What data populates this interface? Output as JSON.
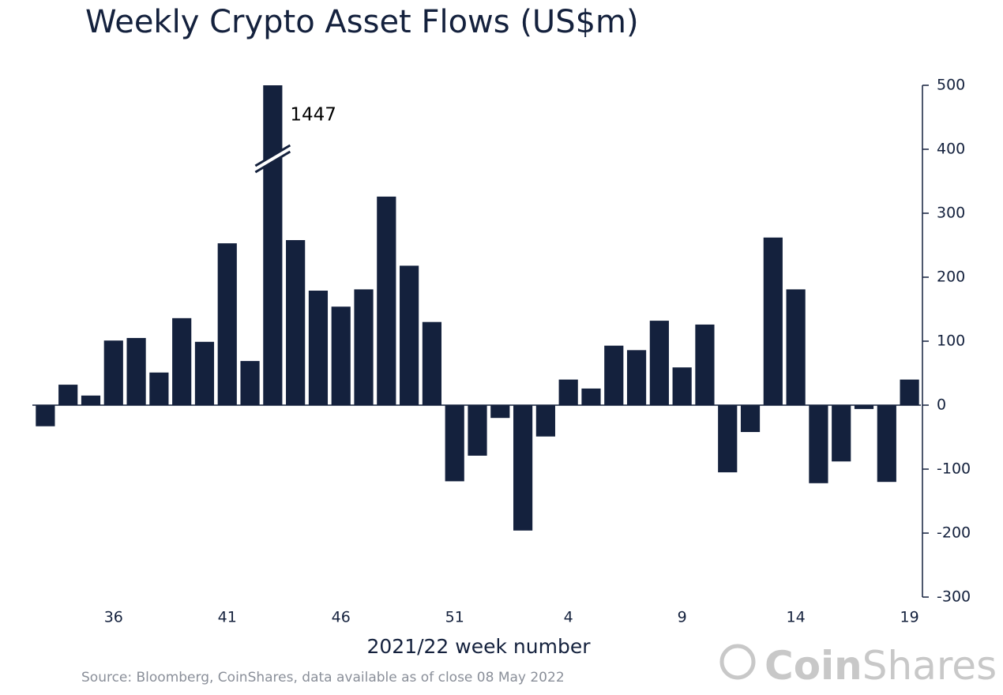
{
  "chart_data": {
    "type": "bar",
    "title": "Weekly Crypto Asset Flows (US$m)",
    "xlabel": "2021/22 week number",
    "source": "Source: Bloomberg, CoinShares, data available as of close 08 May 2022",
    "logo": {
      "bold": "Coin",
      "light": "Shares"
    },
    "color": "#14213d",
    "categories": [
      null,
      null,
      null,
      "36",
      null,
      null,
      null,
      null,
      "41",
      null,
      null,
      null,
      null,
      "46",
      null,
      null,
      null,
      null,
      "51",
      null,
      null,
      null,
      null,
      "4",
      null,
      null,
      null,
      null,
      "9",
      null,
      null,
      null,
      null,
      "14",
      null,
      null,
      null,
      null,
      "19"
    ],
    "values": [
      -33,
      32,
      15,
      101,
      105,
      51,
      136,
      99,
      253,
      69,
      1447,
      258,
      179,
      154,
      181,
      326,
      218,
      130,
      -119,
      -79,
      -20,
      -196,
      -49,
      40,
      26,
      93,
      86,
      132,
      59,
      126,
      -105,
      -42,
      262,
      181,
      -122,
      -88,
      -6,
      -120,
      40
    ],
    "annotated": [
      10
    ],
    "ylim": [
      -300,
      500
    ],
    "yticks": [
      -300,
      -200,
      -100,
      0,
      100,
      200,
      300,
      400,
      500
    ],
    "y_axis_side": "right"
  }
}
